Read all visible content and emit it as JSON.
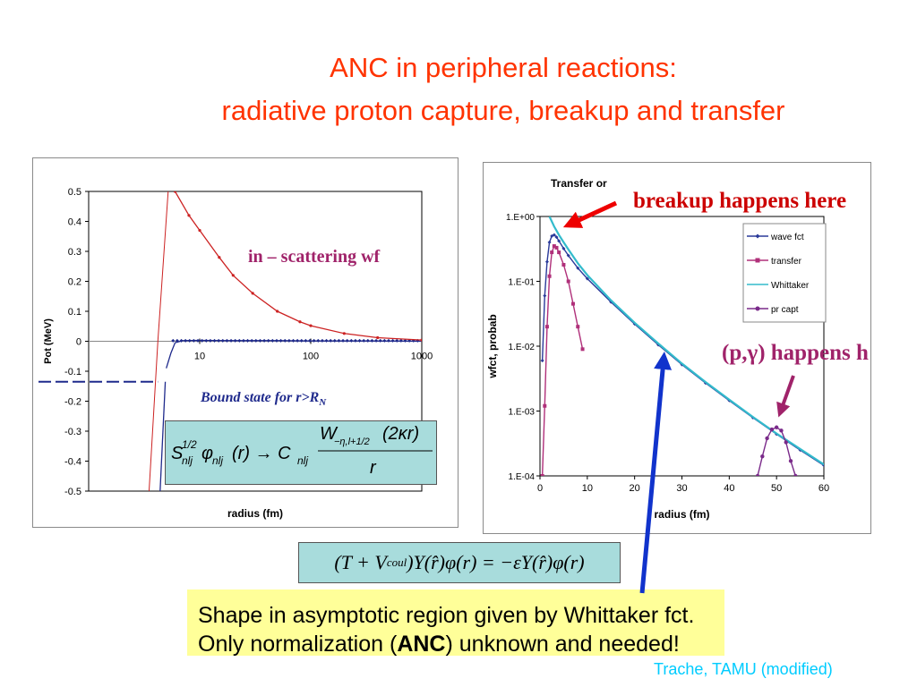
{
  "slide": {
    "title_line1": "ANC in peripheral reactions:",
    "title_line2": "radiative proton capture, breakup and transfer",
    "credit": "Trache, TAMU (modified)"
  },
  "annotations": {
    "breakup": "breakup happens here",
    "pg_prefix": "(p,",
    "pg_gamma": "γ",
    "pg_suffix": ") happens h",
    "in_scattering": "in – scattering wf",
    "bound_state_prefix": "Bound state for r>R",
    "bound_state_sub": "N",
    "shape_line1": "Shape in asymptotic region given by Whittaker fct.",
    "shape_line2_prefix": "Only normalization (",
    "shape_line2_bold": "ANC",
    "shape_line2_suffix": ") unknown and needed!"
  },
  "equations": {
    "eq1_S": "S",
    "eq1_S_sup": "1/2",
    "eq1_S_sub": "nlj",
    "eq1_phi": "φ",
    "eq1_phi_sub": "nlj",
    "eq1_r": "(r) → C",
    "eq1_C_sub": "nlj",
    "eq1_num": "W",
    "eq1_num_sub": "−η,l+1/2",
    "eq1_num_arg": "(2κr)",
    "eq1_den": "r",
    "eq2": "(T + V",
    "eq2_sub": "coul",
    "eq2_rest": ")Y(r̂)φ(r) = −εY(r̂)φ(r)"
  },
  "colors": {
    "title": "#ff3300",
    "red_curve": "#cc2222",
    "blue_curve": "#1f2a8c",
    "wave": "#2a3a9a",
    "transfer": "#b0307a",
    "whittaker": "#33bbcc",
    "prcapt": "#7a2a8a",
    "arrow_red": "#ee0000",
    "arrow_blue": "#1133cc",
    "arrow_purple": "#a0236a",
    "shape_bg": "#ffff99",
    "eq_bg": "#a8dcdc"
  },
  "chart_data": [
    {
      "type": "line",
      "title": "",
      "xlabel": "radius (fm)",
      "ylabel": "Pot (MeV)",
      "x_scale": "log",
      "xlim": [
        1,
        1000
      ],
      "ylim": [
        -0.5,
        0.5
      ],
      "x_ticks": [
        "10",
        "100",
        "1000"
      ],
      "y_ticks": [
        "0.5",
        "0.4",
        "0.3",
        "0.2",
        "0.1",
        "0",
        "-0.1",
        "-0.2",
        "-0.3",
        "-0.4",
        "-0.5"
      ],
      "series": [
        {
          "role": "bound-state-wf",
          "x": [
            1,
            4,
            5,
            5.5,
            6,
            7,
            10,
            20,
            50,
            100,
            300,
            1000
          ],
          "y": [
            -0.135,
            -0.135,
            -0.09,
            -0.04,
            -0.005,
            0.002,
            0.003,
            0.002,
            0.002,
            0.001,
            0.001,
            0.0
          ]
        },
        {
          "role": "potential-steep",
          "x": [
            3.5,
            4.2,
            5.2
          ],
          "y": [
            -0.5,
            0.0,
            0.5
          ]
        },
        {
          "role": "scattering-wf",
          "x": [
            6,
            8,
            10,
            15,
            20,
            30,
            50,
            80,
            100,
            200,
            400,
            1000
          ],
          "y": [
            0.5,
            0.42,
            0.37,
            0.28,
            0.22,
            0.16,
            0.1,
            0.065,
            0.052,
            0.026,
            0.012,
            0.004
          ]
        }
      ]
    },
    {
      "type": "line",
      "title": "Transfer or",
      "xlabel": "radius (fm)",
      "ylabel": "wfct, probab",
      "y_scale": "log",
      "xlim": [
        0,
        60
      ],
      "ylim": [
        0.0001,
        1
      ],
      "x_ticks": [
        "0",
        "10",
        "20",
        "30",
        "40",
        "50",
        "60"
      ],
      "y_ticks": [
        "1.E+00",
        "1.E-01",
        "1.E-02",
        "1.E-03",
        "1.E-04"
      ],
      "legend": "top-right",
      "series": [
        {
          "name": "wave fct",
          "x": [
            0.5,
            1,
            1.5,
            2,
            2.5,
            3,
            3.5,
            4,
            5,
            6,
            8,
            10,
            15,
            20,
            25,
            30,
            35,
            40,
            45,
            50,
            55,
            60
          ],
          "y": [
            0.006,
            0.06,
            0.2,
            0.4,
            0.5,
            0.52,
            0.48,
            0.42,
            0.32,
            0.25,
            0.16,
            0.11,
            0.048,
            0.022,
            0.0105,
            0.0052,
            0.0027,
            0.00145,
            0.00079,
            0.00044,
            0.00025,
            0.000145
          ]
        },
        {
          "name": "transfer",
          "x": [
            0.5,
            1,
            1.5,
            2,
            2.5,
            3,
            3.5,
            4,
            5,
            6,
            7,
            8,
            9
          ],
          "y": [
            0.0001,
            0.0012,
            0.02,
            0.12,
            0.28,
            0.35,
            0.33,
            0.28,
            0.18,
            0.1,
            0.045,
            0.02,
            0.009
          ]
        },
        {
          "name": "Whittaker",
          "x": [
            2,
            3,
            4,
            5,
            6,
            8,
            10,
            15,
            20,
            25,
            30,
            35,
            40,
            45,
            50,
            55,
            60
          ],
          "y": [
            1.0,
            0.7,
            0.52,
            0.4,
            0.31,
            0.19,
            0.125,
            0.051,
            0.023,
            0.011,
            0.0054,
            0.0028,
            0.0015,
            0.00081,
            0.00045,
            0.00026,
            0.00015
          ]
        },
        {
          "name": "pr capt",
          "x": [
            46,
            47,
            48,
            49,
            50,
            51,
            52,
            53,
            54
          ],
          "y": [
            0.0001,
            0.0002,
            0.00038,
            0.00052,
            0.00056,
            0.0005,
            0.00033,
            0.00017,
            0.0001
          ]
        }
      ]
    }
  ]
}
